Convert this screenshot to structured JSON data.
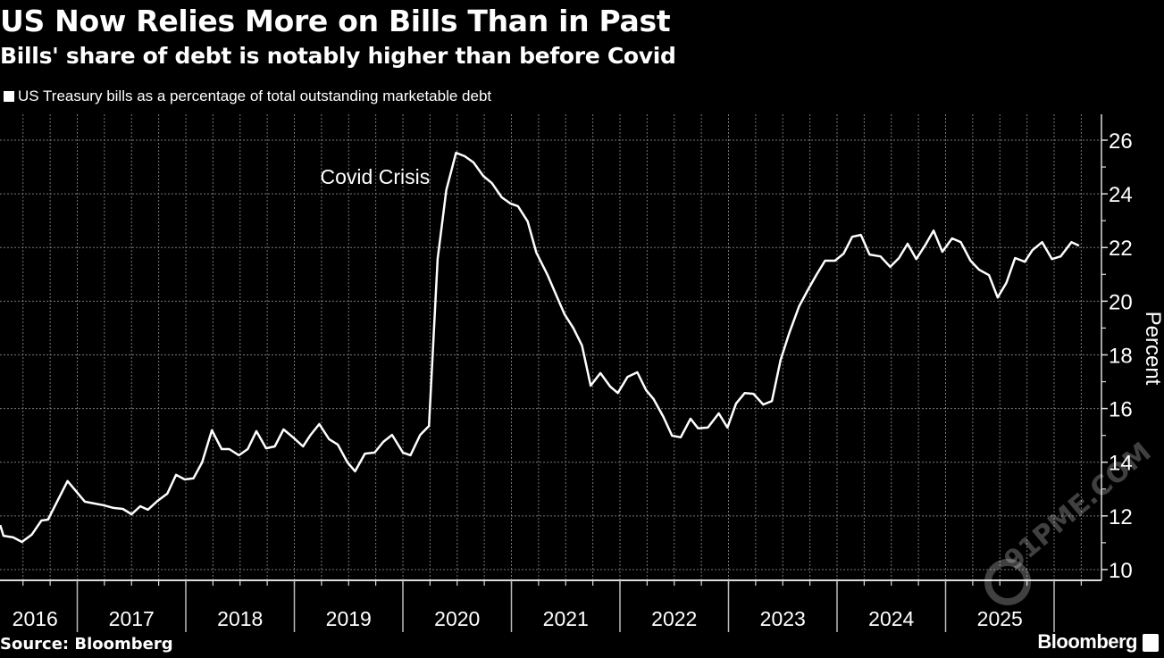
{
  "header": {
    "title": "US Now Relies More on Bills Than in Past",
    "subtitle": "Bills' share of debt is notably higher than before Covid"
  },
  "footer": {
    "source": "Source: Bloomberg",
    "brand": "Bloomberg"
  },
  "watermark": "91PME.COM",
  "colors": {
    "background": "#000000",
    "line": "#ffffff",
    "grid": "#777777"
  },
  "chart_data": {
    "type": "line",
    "title": "US Now Relies More on Bills Than in Past",
    "subtitle": "Bills' share of debt is notably higher than before Covid",
    "xlabel": "",
    "ylabel": "Percent",
    "ylim": [
      10,
      26.5
    ],
    "xlim": [
      2016.29,
      2026.3
    ],
    "yticks": [
      10,
      12,
      14,
      16,
      18,
      20,
      22,
      24,
      26
    ],
    "xtick_labels": [
      "2016",
      "2017",
      "2018",
      "2019",
      "2020",
      "2021",
      "2022",
      "2023",
      "2024",
      "2025"
    ],
    "grid": true,
    "legend": "top-left",
    "annotations": [
      {
        "text": "Covid Crisis",
        "x": 2019.42,
        "y": 24.3
      }
    ],
    "series": [
      {
        "name": "US Treasury bills as a percentage of total outstanding marketable debt",
        "x": [
          2016.29,
          2016.32,
          2016.41,
          2016.49,
          2016.58,
          2016.67,
          2016.73,
          2016.91,
          2017.07,
          2017.16,
          2017.24,
          2017.33,
          2017.42,
          2017.5,
          2017.58,
          2017.65,
          2017.74,
          2017.83,
          2017.91,
          2017.99,
          2018.07,
          2018.15,
          2018.24,
          2018.33,
          2018.4,
          2018.49,
          2018.57,
          2018.65,
          2018.74,
          2018.82,
          2018.9,
          2018.99,
          2019.08,
          2019.15,
          2019.23,
          2019.32,
          2019.4,
          2019.49,
          2019.56,
          2019.65,
          2019.74,
          2019.82,
          2019.9,
          2020.0,
          2020.07,
          2020.16,
          2020.24,
          2020.32,
          2020.4,
          2020.49,
          2020.57,
          2020.65,
          2020.74,
          2020.82,
          2020.91,
          2020.99,
          2021.06,
          2021.15,
          2021.23,
          2021.33,
          2021.41,
          2021.49,
          2021.57,
          2021.65,
          2021.73,
          2021.82,
          2021.91,
          2021.98,
          2022.07,
          2022.16,
          2022.24,
          2022.31,
          2022.4,
          2022.48,
          2022.56,
          2022.65,
          2022.72,
          2022.81,
          2022.91,
          2022.99,
          2023.07,
          2023.15,
          2023.23,
          2023.32,
          2023.4,
          2023.48,
          2023.56,
          2023.65,
          2023.73,
          2023.81,
          2023.89,
          2023.98,
          2024.06,
          2024.14,
          2024.22,
          2024.3,
          2024.4,
          2024.49,
          2024.57,
          2024.65,
          2024.73,
          2024.81,
          2024.89,
          2024.97,
          2025.06,
          2025.14,
          2025.23,
          2025.31,
          2025.4,
          2025.48,
          2025.56,
          2025.64,
          2025.73,
          2025.8,
          2025.89,
          2025.98,
          2026.06,
          2026.16,
          2026.23
        ],
        "values": [
          11.66,
          11.26,
          11.2,
          11.03,
          11.3,
          11.83,
          11.86,
          13.3,
          12.53,
          12.46,
          12.4,
          12.3,
          12.26,
          12.06,
          12.36,
          12.23,
          12.56,
          12.83,
          13.53,
          13.36,
          13.4,
          13.99,
          15.19,
          14.49,
          14.49,
          14.26,
          14.49,
          15.16,
          14.52,
          14.59,
          15.22,
          14.92,
          14.59,
          15.02,
          15.42,
          14.86,
          14.66,
          13.99,
          13.66,
          14.32,
          14.36,
          14.76,
          15.02,
          14.36,
          14.26,
          15.02,
          15.35,
          21.58,
          24.14,
          25.53,
          25.4,
          25.17,
          24.67,
          24.4,
          23.87,
          23.64,
          23.54,
          22.97,
          21.81,
          21.0,
          20.25,
          19.51,
          19.0,
          18.35,
          16.85,
          17.32,
          16.82,
          16.58,
          17.18,
          17.35,
          16.69,
          16.35,
          15.69,
          14.99,
          14.93,
          15.62,
          15.26,
          15.29,
          15.82,
          15.29,
          16.19,
          16.58,
          16.55,
          16.15,
          16.28,
          17.81,
          18.81,
          19.81,
          20.41,
          20.98,
          21.51,
          21.51,
          21.77,
          22.4,
          22.47,
          21.74,
          21.67,
          21.28,
          21.61,
          22.14,
          21.57,
          22.07,
          22.63,
          21.84,
          22.34,
          22.2,
          21.51,
          21.17,
          20.97,
          20.14,
          20.68,
          21.61,
          21.47,
          21.9,
          22.2,
          21.57,
          21.67,
          22.2,
          22.07
        ]
      }
    ]
  }
}
